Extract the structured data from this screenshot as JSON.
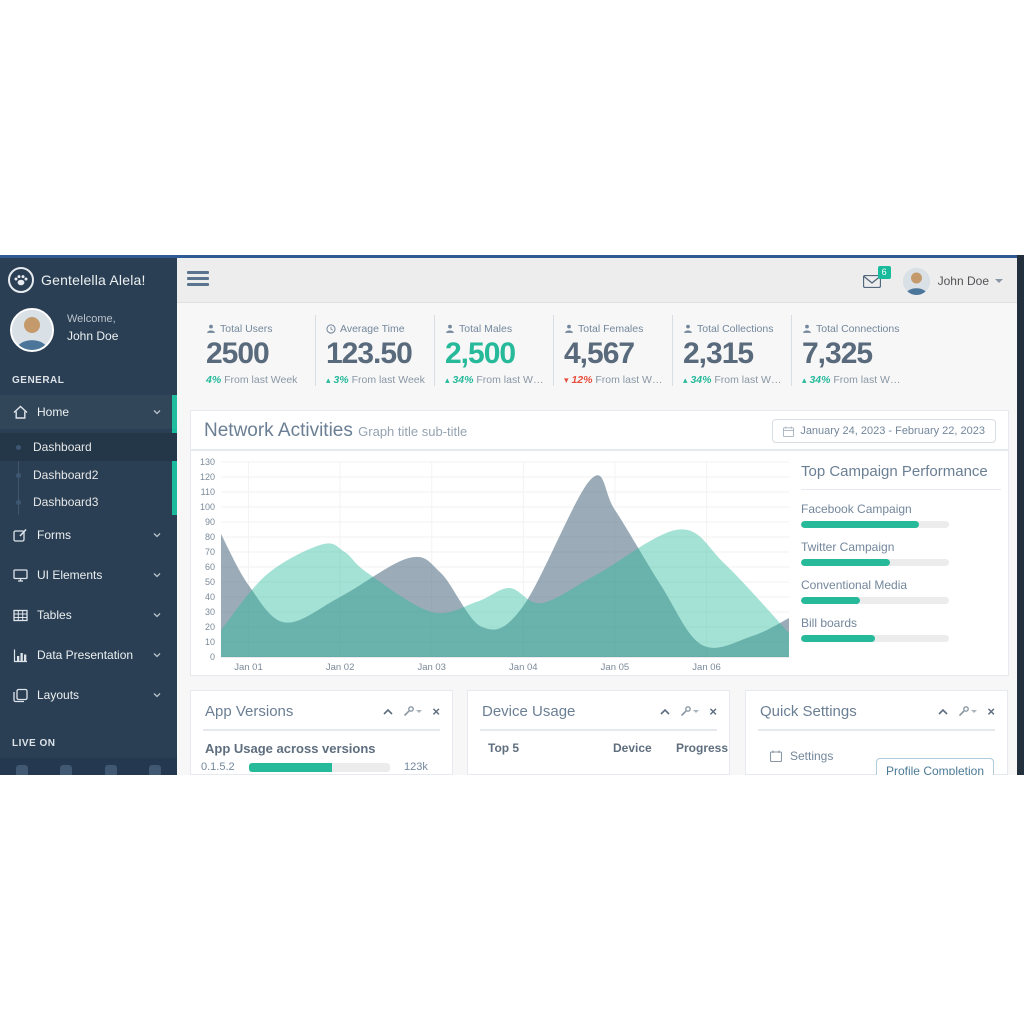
{
  "sidebar": {
    "brand": "Gentelella Alela!",
    "welcome_label": "Welcome,",
    "user_name": "John Doe",
    "section_general": "GENERAL",
    "section_live": "LIVE ON",
    "menu": [
      {
        "label": "Home",
        "icon": "home-icon",
        "children": [
          "Dashboard",
          "Dashboard2",
          "Dashboard3"
        ],
        "active_child": "Dashboard"
      },
      {
        "label": "Forms",
        "icon": "edit-icon"
      },
      {
        "label": "UI Elements",
        "icon": "desktop-icon"
      },
      {
        "label": "Tables",
        "icon": "table-icon"
      },
      {
        "label": "Data Presentation",
        "icon": "bar-chart-icon"
      },
      {
        "label": "Layouts",
        "icon": "clone-icon"
      }
    ]
  },
  "topnav": {
    "badge_count": "6",
    "user_name": "John Doe"
  },
  "stats": [
    {
      "icon": "user",
      "label": "Total Users",
      "value": "2500",
      "arrow": "",
      "delta": "4%",
      "desc": "From last Week"
    },
    {
      "icon": "clock",
      "label": "Average Time",
      "value": "123.50",
      "arrow": "▴",
      "delta": "3%",
      "desc": "From last Week"
    },
    {
      "icon": "user",
      "label": "Total Males",
      "value": "2,500",
      "arrow": "▴",
      "delta": "34%",
      "desc": "From last W…"
    },
    {
      "icon": "user",
      "label": "Total Females",
      "value": "4,567",
      "arrow": "▾",
      "delta": "12%",
      "desc": "From last W…"
    },
    {
      "icon": "user",
      "label": "Total Collections",
      "value": "2,315",
      "arrow": "▴",
      "delta": "34%",
      "desc": "From last W…"
    },
    {
      "icon": "user",
      "label": "Total Connections",
      "value": "7,325",
      "arrow": "▴",
      "delta": "34%",
      "desc": "From last W…"
    }
  ],
  "network_panel": {
    "title": "Network Activities",
    "subtitle": "Graph title sub-title",
    "date_range": "January 24, 2023 - February 22, 2023"
  },
  "chart_data": {
    "type": "area",
    "title": "Network Activities",
    "x_axis": {
      "labels": [
        "Jan 01",
        "Jan 02",
        "Jan 03",
        "Jan 04",
        "Jan 05",
        "Jan 06"
      ],
      "label_days": [
        1,
        2,
        3,
        4,
        5,
        6
      ],
      "domain": [
        0.7,
        6.9
      ]
    },
    "y_axis": {
      "min": 0,
      "max": 130,
      "tick_step": 10
    },
    "grid": true,
    "legend": "none",
    "series": [
      {
        "name": "blue-gray-area",
        "color": "rgba(73,104,126,0.55)",
        "points": [
          [
            0.7,
            82
          ],
          [
            1.0,
            48
          ],
          [
            1.4,
            23
          ],
          [
            2.0,
            40
          ],
          [
            2.75,
            66
          ],
          [
            3.1,
            56
          ],
          [
            3.55,
            20
          ],
          [
            4.0,
            34
          ],
          [
            4.73,
            118
          ],
          [
            5.0,
            98
          ],
          [
            5.5,
            48
          ],
          [
            5.95,
            8
          ],
          [
            6.5,
            14
          ],
          [
            6.9,
            26
          ]
        ]
      },
      {
        "name": "teal-area",
        "color": "rgba(38,185,154,0.42)",
        "points": [
          [
            0.7,
            18
          ],
          [
            1.2,
            55
          ],
          [
            1.8,
            75
          ],
          [
            2.05,
            70
          ],
          [
            2.3,
            56
          ],
          [
            3.0,
            30
          ],
          [
            3.5,
            37
          ],
          [
            3.85,
            46
          ],
          [
            4.2,
            36
          ],
          [
            4.8,
            55
          ],
          [
            5.7,
            85
          ],
          [
            6.2,
            62
          ],
          [
            6.9,
            16
          ]
        ]
      }
    ]
  },
  "campaigns": {
    "title": "Top Campaign Performance",
    "items": [
      {
        "label": "Facebook Campaign",
        "value": 80
      },
      {
        "label": "Twitter Campaign",
        "value": 60
      },
      {
        "label": "Conventional Media",
        "value": 40
      },
      {
        "label": "Bill boards",
        "value": 50
      }
    ]
  },
  "panels": {
    "tools_close": "×",
    "app_versions": {
      "title": "App Versions",
      "usage_title": "App Usage across versions",
      "rows": [
        {
          "version": "0.1.5.2",
          "percent": 59,
          "count": "123k"
        }
      ]
    },
    "device_usage": {
      "title": "Device Usage",
      "headers": [
        "Top 5",
        "Device",
        "Progress"
      ]
    },
    "quick_settings": {
      "title": "Quick Settings",
      "item_label": "Settings",
      "tooltip": "Profile Completion"
    }
  }
}
